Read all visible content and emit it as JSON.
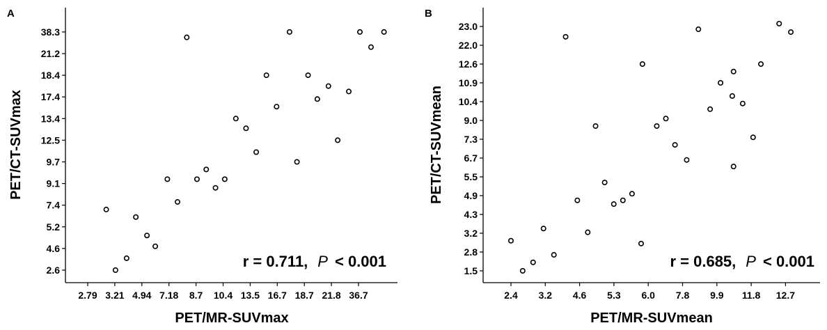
{
  "chart_data": [
    {
      "type": "scatter",
      "panel_label": "A",
      "xlabel": "PET/MR-SUVmax",
      "ylabel": "PET/CT-SUVmax",
      "x_tick_labels": [
        "2.79",
        "3.21",
        "4.94",
        "7.18",
        "8.7",
        "10.4",
        "13.5",
        "16.7",
        "18.7",
        "21.8",
        "36.7"
      ],
      "y_tick_labels": [
        "2.6",
        "4.6",
        "5.2",
        "7.4",
        "9.1",
        "9.7",
        "12.5",
        "13.4",
        "17.4",
        "18.4",
        "21.2",
        "38.3"
      ],
      "annotation": {
        "prefix": "r = 0.711,",
        "p_symbol": "P",
        "suffix": "< 0.001"
      },
      "points": [
        {
          "x": 1.0,
          "y": 2.8
        },
        {
          "x": 1.5,
          "y": 0.0
        },
        {
          "x": 2.1,
          "y": 0.55
        },
        {
          "x": 2.6,
          "y": 2.45
        },
        {
          "x": 3.2,
          "y": 1.6
        },
        {
          "x": 3.65,
          "y": 1.1
        },
        {
          "x": 4.3,
          "y": 4.2
        },
        {
          "x": 4.85,
          "y": 3.15
        },
        {
          "x": 5.35,
          "y": 10.75
        },
        {
          "x": 5.9,
          "y": 4.2
        },
        {
          "x": 6.4,
          "y": 4.65
        },
        {
          "x": 6.9,
          "y": 3.8
        },
        {
          "x": 7.4,
          "y": 4.2
        },
        {
          "x": 8.0,
          "y": 7.0
        },
        {
          "x": 8.55,
          "y": 6.55
        },
        {
          "x": 9.1,
          "y": 5.45
        },
        {
          "x": 9.65,
          "y": 9.0
        },
        {
          "x": 10.2,
          "y": 7.55
        },
        {
          "x": 10.9,
          "y": 11.0
        },
        {
          "x": 11.3,
          "y": 5.0
        },
        {
          "x": 11.9,
          "y": 9.0
        },
        {
          "x": 12.4,
          "y": 7.9
        },
        {
          "x": 13.0,
          "y": 8.5
        },
        {
          "x": 13.5,
          "y": 6.0
        },
        {
          "x": 14.1,
          "y": 8.25
        },
        {
          "x": 14.7,
          "y": 11.0
        },
        {
          "x": 15.3,
          "y": 10.3
        },
        {
          "x": 16.0,
          "y": 11.0
        }
      ]
    },
    {
      "type": "scatter",
      "panel_label": "B",
      "xlabel": "PET/MR-SUVmean",
      "ylabel": "PET/CT-SUVmean",
      "x_tick_labels": [
        "2.4",
        "3.2",
        "4.6",
        "5.3",
        "6.0",
        "7.8",
        "9.9",
        "11.8",
        "12.7"
      ],
      "y_tick_labels": [
        "1.5",
        "2.8",
        "3.2",
        "4.3",
        "4.9",
        "5.5",
        "6.7",
        "7.3",
        "9.0",
        "10.4",
        "10.9",
        "12.6",
        "22.0",
        "23.0"
      ],
      "annotation": {
        "prefix": "r = 0.685,",
        "p_symbol": "P",
        "suffix": "< 0.001"
      },
      "points": [
        {
          "x": 0.0,
          "y": 1.6
        },
        {
          "x": 0.45,
          "y": 0.0
        },
        {
          "x": 0.85,
          "y": 0.45
        },
        {
          "x": 1.25,
          "y": 2.25
        },
        {
          "x": 1.65,
          "y": 0.85
        },
        {
          "x": 2.1,
          "y": 12.45
        },
        {
          "x": 2.55,
          "y": 3.75
        },
        {
          "x": 2.95,
          "y": 2.05
        },
        {
          "x": 3.25,
          "y": 7.7
        },
        {
          "x": 3.6,
          "y": 4.7
        },
        {
          "x": 3.95,
          "y": 3.55
        },
        {
          "x": 4.3,
          "y": 3.75
        },
        {
          "x": 4.65,
          "y": 4.1
        },
        {
          "x": 5.0,
          "y": 1.45
        },
        {
          "x": 5.05,
          "y": 11.0
        },
        {
          "x": 5.6,
          "y": 7.7
        },
        {
          "x": 5.95,
          "y": 8.1
        },
        {
          "x": 6.3,
          "y": 6.7
        },
        {
          "x": 6.75,
          "y": 5.9
        },
        {
          "x": 7.2,
          "y": 12.85
        },
        {
          "x": 7.65,
          "y": 8.6
        },
        {
          "x": 8.05,
          "y": 10.0
        },
        {
          "x": 8.5,
          "y": 9.3
        },
        {
          "x": 8.55,
          "y": 10.6
        },
        {
          "x": 8.55,
          "y": 5.55
        },
        {
          "x": 8.9,
          "y": 8.9
        },
        {
          "x": 9.3,
          "y": 7.1
        },
        {
          "x": 9.6,
          "y": 11.0
        },
        {
          "x": 10.3,
          "y": 13.15
        },
        {
          "x": 10.75,
          "y": 12.7
        }
      ]
    }
  ]
}
